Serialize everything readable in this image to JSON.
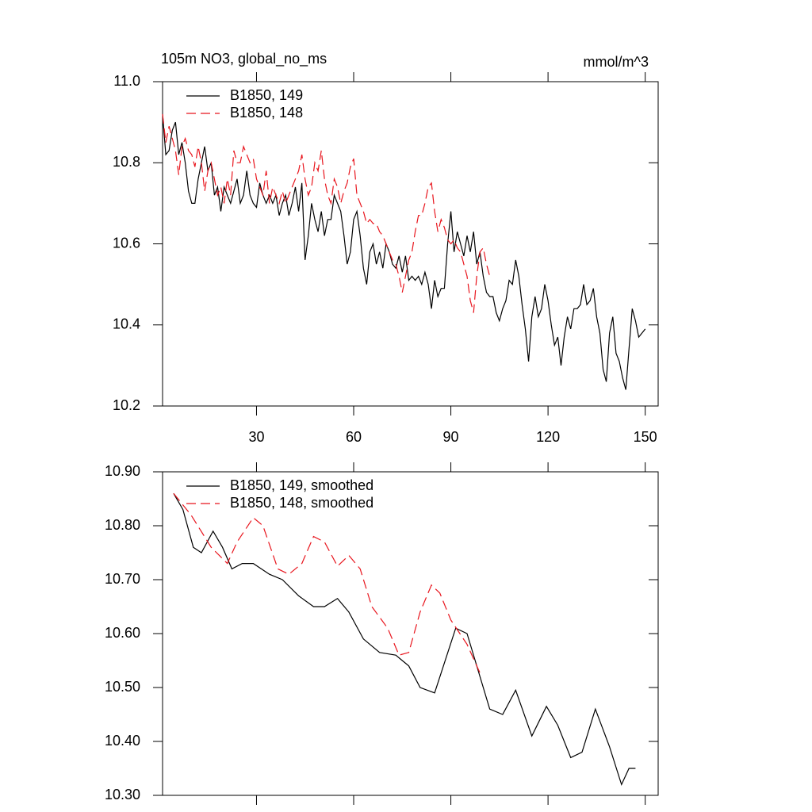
{
  "chart_data": [
    {
      "type": "line",
      "title": "105m NO3, global_no_ms",
      "units": "mmol/m^3",
      "xlim": [
        1,
        154
      ],
      "xticks": [
        30,
        60,
        90,
        120,
        150
      ],
      "show_xtick_labels": true,
      "ylim": [
        10.2,
        11.0
      ],
      "yticks": [
        10.2,
        10.4,
        10.6,
        10.8,
        {
          "value": 11.0,
          "label": "11.0"
        }
      ],
      "series": [
        {
          "name": "B1850, 149",
          "color": "#000000",
          "dash": false,
          "x": [
            1,
            2,
            3,
            4,
            5,
            6,
            7,
            8,
            9,
            10,
            11,
            12,
            13,
            14,
            15,
            16,
            17,
            18,
            19,
            20,
            21,
            22,
            23,
            24,
            25,
            26,
            27,
            28,
            29,
            30,
            31,
            32,
            33,
            34,
            35,
            36,
            37,
            38,
            39,
            40,
            41,
            42,
            43,
            44,
            45,
            46,
            47,
            48,
            49,
            50,
            51,
            52,
            53,
            54,
            55,
            56,
            57,
            58,
            59,
            60,
            61,
            62,
            63,
            64,
            65,
            66,
            67,
            68,
            69,
            70,
            71,
            72,
            73,
            74,
            75,
            76,
            77,
            78,
            79,
            80,
            81,
            82,
            83,
            84,
            85,
            86,
            87,
            88,
            89,
            90,
            91,
            92,
            93,
            94,
            95,
            96,
            97,
            98,
            99,
            100,
            101,
            102,
            103,
            104,
            105,
            106,
            107,
            108,
            109,
            110,
            111,
            112,
            113,
            114,
            115,
            116,
            117,
            118,
            119,
            120,
            121,
            122,
            123,
            124,
            125,
            126,
            127,
            128,
            129,
            130,
            131,
            132,
            133,
            134,
            135,
            136,
            137,
            138,
            139,
            140,
            141,
            142,
            143,
            144,
            145,
            146,
            147,
            148,
            149,
            150
          ],
          "values": [
            10.92,
            10.82,
            10.83,
            10.88,
            10.9,
            10.82,
            10.85,
            10.8,
            10.73,
            10.7,
            10.7,
            10.76,
            10.8,
            10.84,
            10.78,
            10.8,
            10.72,
            10.74,
            10.68,
            10.74,
            10.72,
            10.7,
            10.73,
            10.76,
            10.7,
            10.72,
            10.78,
            10.72,
            10.7,
            10.69,
            10.75,
            10.72,
            10.7,
            10.72,
            10.7,
            10.72,
            10.67,
            10.7,
            10.72,
            10.67,
            10.7,
            10.74,
            10.68,
            10.75,
            10.56,
            10.62,
            10.7,
            10.66,
            10.63,
            10.68,
            10.62,
            10.66,
            10.66,
            10.72,
            10.7,
            10.68,
            10.62,
            10.55,
            10.58,
            10.66,
            10.68,
            10.62,
            10.54,
            10.5,
            10.58,
            10.6,
            10.55,
            10.58,
            10.54,
            10.6,
            10.58,
            10.55,
            10.54,
            10.57,
            10.53,
            10.57,
            10.51,
            10.52,
            10.51,
            10.52,
            10.5,
            10.53,
            10.5,
            10.44,
            10.51,
            10.47,
            10.49,
            10.49,
            10.6,
            10.68,
            10.58,
            10.63,
            10.6,
            10.57,
            10.62,
            10.58,
            10.63,
            10.55,
            10.58,
            10.52,
            10.48,
            10.47,
            10.47,
            10.43,
            10.41,
            10.44,
            10.46,
            10.51,
            10.5,
            10.56,
            10.52,
            10.45,
            10.39,
            10.31,
            10.42,
            10.47,
            10.42,
            10.44,
            10.5,
            10.46,
            10.4,
            10.35,
            10.37,
            10.3,
            10.37,
            10.42,
            10.39,
            10.44,
            10.44,
            10.45,
            10.5,
            10.45,
            10.46,
            10.49,
            10.42,
            10.38,
            10.29,
            10.26,
            10.38,
            10.42,
            10.33,
            10.31,
            10.27,
            10.24,
            10.34,
            10.44,
            10.41,
            10.37,
            10.38,
            10.39
          ]
        },
        {
          "name": "B1850, 148",
          "color": "#e8141c",
          "dash": true,
          "x": [
            1,
            2,
            3,
            4,
            5,
            6,
            7,
            8,
            9,
            10,
            11,
            12,
            13,
            14,
            15,
            16,
            17,
            18,
            19,
            20,
            21,
            22,
            23,
            24,
            25,
            26,
            27,
            28,
            29,
            30,
            31,
            32,
            33,
            34,
            35,
            36,
            37,
            38,
            39,
            40,
            41,
            42,
            43,
            44,
            45,
            46,
            47,
            48,
            49,
            50,
            51,
            52,
            53,
            54,
            55,
            56,
            57,
            58,
            59,
            60,
            61,
            62,
            63,
            64,
            65,
            66,
            67,
            68,
            69,
            70,
            71,
            72,
            73,
            74,
            75,
            76,
            77,
            78,
            79,
            80,
            81,
            82,
            83,
            84,
            85,
            86,
            87,
            88,
            89,
            90,
            91,
            92,
            93,
            94,
            95,
            96,
            97,
            98,
            99,
            100,
            101,
            102
          ],
          "values": [
            10.92,
            10.85,
            10.89,
            10.86,
            10.83,
            10.77,
            10.84,
            10.86,
            10.83,
            10.82,
            10.79,
            10.84,
            10.8,
            10.73,
            10.78,
            10.8,
            10.76,
            10.72,
            10.74,
            10.7,
            10.76,
            10.72,
            10.83,
            10.8,
            10.8,
            10.84,
            10.82,
            10.8,
            10.81,
            10.76,
            10.74,
            10.72,
            10.78,
            10.7,
            10.74,
            10.72,
            10.7,
            10.73,
            10.7,
            10.72,
            10.74,
            10.76,
            10.78,
            10.82,
            10.76,
            10.72,
            10.74,
            10.8,
            10.78,
            10.83,
            10.76,
            10.72,
            10.7,
            10.76,
            10.74,
            10.7,
            10.73,
            10.75,
            10.79,
            10.81,
            10.72,
            10.7,
            10.68,
            10.65,
            10.66,
            10.65,
            10.65,
            10.63,
            10.62,
            10.6,
            10.58,
            10.56,
            10.55,
            10.52,
            10.48,
            10.52,
            10.56,
            10.58,
            10.63,
            10.67,
            10.67,
            10.7,
            10.74,
            10.75,
            10.68,
            10.63,
            10.66,
            10.64,
            10.61,
            10.6,
            10.61,
            10.59,
            10.58,
            10.55,
            10.52,
            10.46,
            10.43,
            10.52,
            10.58,
            10.59,
            10.55,
            10.52
          ]
        }
      ]
    },
    {
      "type": "line",
      "xlim": [
        1,
        154
      ],
      "xticks": [
        30,
        60,
        90,
        120,
        150
      ],
      "show_xtick_labels": false,
      "ylim": [
        10.3,
        10.9
      ],
      "yticks": [
        {
          "value": 10.3,
          "label": "10.30"
        },
        {
          "value": 10.4,
          "label": "10.40"
        },
        {
          "value": 10.5,
          "label": "10.50"
        },
        {
          "value": 10.6,
          "label": "10.60"
        },
        {
          "value": 10.7,
          "label": "10.70"
        },
        {
          "value": 10.8,
          "label": "10.80"
        },
        {
          "value": 10.9,
          "label": "10.90"
        }
      ],
      "series": [
        {
          "name": "B1850, 149, smoothed",
          "color": "#000000",
          "dash": false,
          "x": [
            4.4,
            7.3,
            10.5,
            13,
            16.6,
            19.5,
            22.4,
            25.6,
            29,
            34,
            38,
            43,
            47.6,
            51,
            55,
            58.5,
            63,
            68,
            73,
            77,
            80.5,
            85,
            91.5,
            95,
            102,
            106,
            110,
            115,
            119.5,
            123,
            127,
            130.5,
            134.6,
            139,
            142.7,
            145,
            147
          ],
          "values": [
            10.86,
            10.83,
            10.76,
            10.75,
            10.79,
            10.76,
            10.72,
            10.73,
            10.73,
            10.71,
            10.7,
            10.67,
            10.65,
            10.65,
            10.665,
            10.64,
            10.59,
            10.565,
            10.56,
            10.54,
            10.5,
            10.49,
            10.61,
            10.6,
            10.46,
            10.45,
            10.495,
            10.41,
            10.465,
            10.43,
            10.37,
            10.38,
            10.46,
            10.39,
            10.32,
            10.35,
            10.35
          ]
        },
        {
          "name": "B1850, 148, smoothed",
          "color": "#e8141c",
          "dash": true,
          "x": [
            4.4,
            9.8,
            16,
            21,
            24,
            29,
            32,
            36.6,
            40,
            44,
            47.6,
            51,
            55,
            58.5,
            62,
            65.6,
            70.5,
            74,
            77,
            80.5,
            84,
            86.6,
            90,
            95,
            99.5
          ],
          "values": [
            10.86,
            10.82,
            10.76,
            10.73,
            10.77,
            10.815,
            10.8,
            10.72,
            10.71,
            10.73,
            10.78,
            10.77,
            10.725,
            10.745,
            10.72,
            10.65,
            10.61,
            10.56,
            10.565,
            10.64,
            10.69,
            10.675,
            10.625,
            10.58,
            10.52
          ]
        }
      ]
    }
  ]
}
